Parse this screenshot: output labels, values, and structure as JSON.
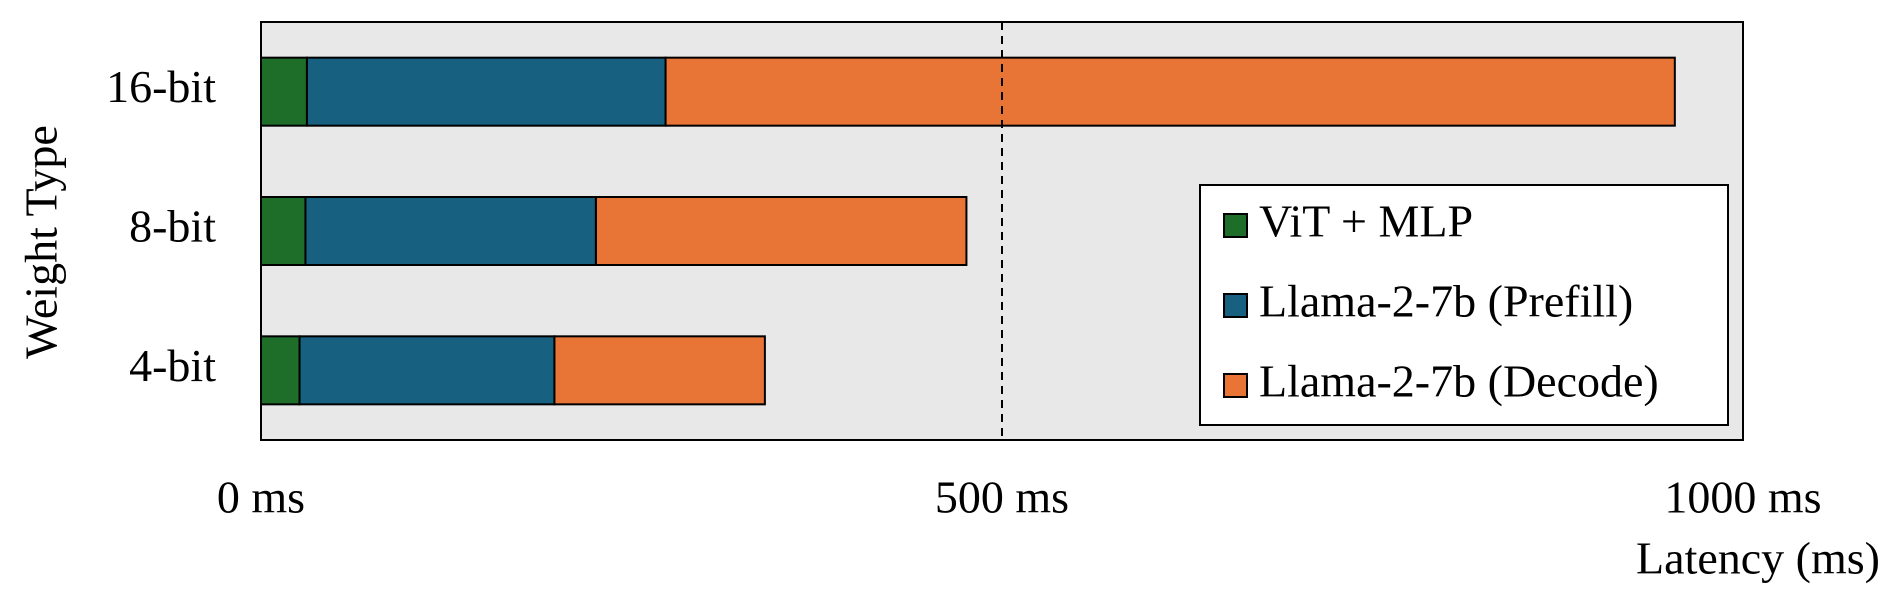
{
  "chart_data": {
    "type": "stacked_barh",
    "categories": [
      "16-bit",
      "8-bit",
      "4-bit"
    ],
    "series": [
      {
        "name": "ViT + MLP",
        "color": "#1e6e2a",
        "values": [
          31,
          30,
          26
        ]
      },
      {
        "name": "Llama-2-7b (Prefill)",
        "color": "#17607f",
        "values": [
          242,
          196,
          172
        ]
      },
      {
        "name": "Llama-2-7b (Decode)",
        "color": "#e87436",
        "values": [
          681,
          250,
          142
        ]
      }
    ],
    "xlim": [
      0,
      1000
    ],
    "xticks": [
      {
        "value": 0,
        "label": "0 ms"
      },
      {
        "value": 500,
        "label": "500 ms"
      },
      {
        "value": 1000,
        "label": "1000 ms"
      }
    ],
    "reference_line": 500,
    "xlabel": "Latency (ms)",
    "ylabel": "Weight Type",
    "legend": "lower right"
  }
}
